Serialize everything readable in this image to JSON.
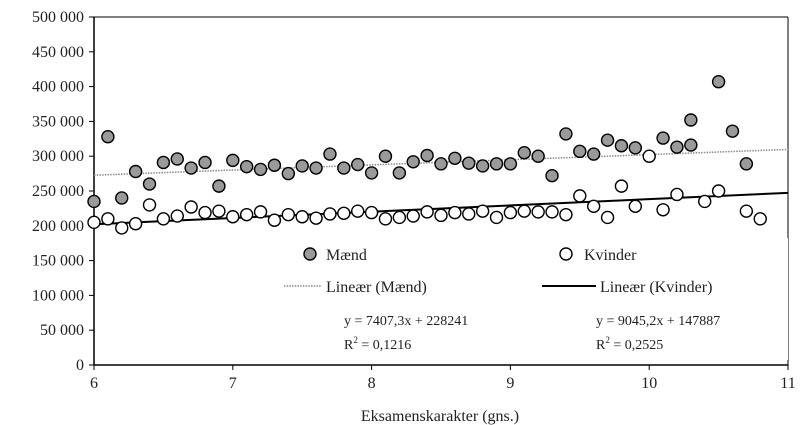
{
  "chart_data": {
    "type": "scatter",
    "xlabel": "Eksamenskarakter (gns.)",
    "ylabel": "",
    "xlim": [
      6,
      11
    ],
    "ylim": [
      0,
      500000
    ],
    "x_ticks": [
      "6",
      "7",
      "8",
      "9",
      "10",
      "11"
    ],
    "y_ticks": [
      "0",
      "50 000",
      "100 000",
      "150 000",
      "200 000",
      "250 000",
      "300 000",
      "350 000",
      "400 000",
      "450 000",
      "500 000"
    ],
    "grid": false,
    "legend": {
      "placement": "inside-lower-center",
      "entries": [
        "Mænd",
        "Kvinder",
        "Lineær (Mænd)",
        "Lineær (Kvinder)"
      ]
    },
    "series": [
      {
        "name": "Mænd",
        "marker": "filled-gray-circle",
        "color": "#9a9a9a",
        "points": [
          [
            6.0,
            235000
          ],
          [
            6.1,
            328000
          ],
          [
            6.2,
            240000
          ],
          [
            6.3,
            278000
          ],
          [
            6.4,
            260000
          ],
          [
            6.5,
            291000
          ],
          [
            6.6,
            296000
          ],
          [
            6.7,
            283000
          ],
          [
            6.8,
            291000
          ],
          [
            6.9,
            257000
          ],
          [
            7.0,
            294000
          ],
          [
            7.1,
            285000
          ],
          [
            7.2,
            281000
          ],
          [
            7.3,
            287000
          ],
          [
            7.4,
            275000
          ],
          [
            7.5,
            286000
          ],
          [
            7.6,
            283000
          ],
          [
            7.7,
            303000
          ],
          [
            7.8,
            283000
          ],
          [
            7.9,
            288000
          ],
          [
            8.0,
            276000
          ],
          [
            8.1,
            300000
          ],
          [
            8.2,
            276000
          ],
          [
            8.3,
            292000
          ],
          [
            8.4,
            301000
          ],
          [
            8.5,
            289000
          ],
          [
            8.6,
            297000
          ],
          [
            8.7,
            290000
          ],
          [
            8.8,
            286000
          ],
          [
            8.9,
            289000
          ],
          [
            9.0,
            289000
          ],
          [
            9.1,
            305000
          ],
          [
            9.2,
            300000
          ],
          [
            9.3,
            272000
          ],
          [
            9.4,
            332000
          ],
          [
            9.5,
            307000
          ],
          [
            9.6,
            303000
          ],
          [
            9.7,
            323000
          ],
          [
            9.8,
            315000
          ],
          [
            9.9,
            312000
          ],
          [
            10.1,
            326000
          ],
          [
            10.2,
            313000
          ],
          [
            10.3,
            352000
          ],
          [
            10.3,
            316000
          ],
          [
            10.5,
            407000
          ],
          [
            10.6,
            336000
          ],
          [
            10.7,
            289000
          ]
        ]
      },
      {
        "name": "Kvinder",
        "marker": "open-circle",
        "color": "#000000",
        "points": [
          [
            6.0,
            205000
          ],
          [
            6.1,
            210000
          ],
          [
            6.2,
            197000
          ],
          [
            6.3,
            203000
          ],
          [
            6.4,
            230000
          ],
          [
            6.5,
            210000
          ],
          [
            6.6,
            214000
          ],
          [
            6.7,
            227000
          ],
          [
            6.8,
            219000
          ],
          [
            6.9,
            221000
          ],
          [
            7.0,
            213000
          ],
          [
            7.1,
            216000
          ],
          [
            7.2,
            220000
          ],
          [
            7.3,
            208000
          ],
          [
            7.4,
            216000
          ],
          [
            7.5,
            213000
          ],
          [
            7.6,
            211000
          ],
          [
            7.7,
            217000
          ],
          [
            7.8,
            218000
          ],
          [
            7.9,
            221000
          ],
          [
            8.0,
            219000
          ],
          [
            8.1,
            210000
          ],
          [
            8.2,
            212000
          ],
          [
            8.3,
            214000
          ],
          [
            8.4,
            220000
          ],
          [
            8.5,
            215000
          ],
          [
            8.6,
            219000
          ],
          [
            8.7,
            217000
          ],
          [
            8.8,
            221000
          ],
          [
            8.9,
            212000
          ],
          [
            9.0,
            219000
          ],
          [
            9.1,
            221000
          ],
          [
            9.2,
            220000
          ],
          [
            9.3,
            220000
          ],
          [
            9.4,
            216000
          ],
          [
            9.5,
            243000
          ],
          [
            9.6,
            228000
          ],
          [
            9.7,
            212000
          ],
          [
            9.8,
            257000
          ],
          [
            9.9,
            228000
          ],
          [
            10.0,
            300000
          ],
          [
            10.1,
            223000
          ],
          [
            10.2,
            245000
          ],
          [
            10.4,
            235000
          ],
          [
            10.5,
            250000
          ],
          [
            10.7,
            221000
          ],
          [
            10.8,
            210000
          ]
        ]
      }
    ],
    "trendlines": [
      {
        "name": "Lineær (Mænd)",
        "slope": 7407.3,
        "intercept": 228241,
        "style": "dotted-gray",
        "equation": "y = 7407,3x + 228241",
        "r2_prefix": "R",
        "r2_sup": "2",
        "r2_value": " = 0,1216"
      },
      {
        "name": "Lineær (Kvinder)",
        "slope": 9045.2,
        "intercept": 147887,
        "style": "solid-black",
        "equation": "y = 9045,2x + 147887",
        "r2_prefix": "R",
        "r2_sup": "2",
        "r2_value": " = 0,2525"
      }
    ]
  }
}
